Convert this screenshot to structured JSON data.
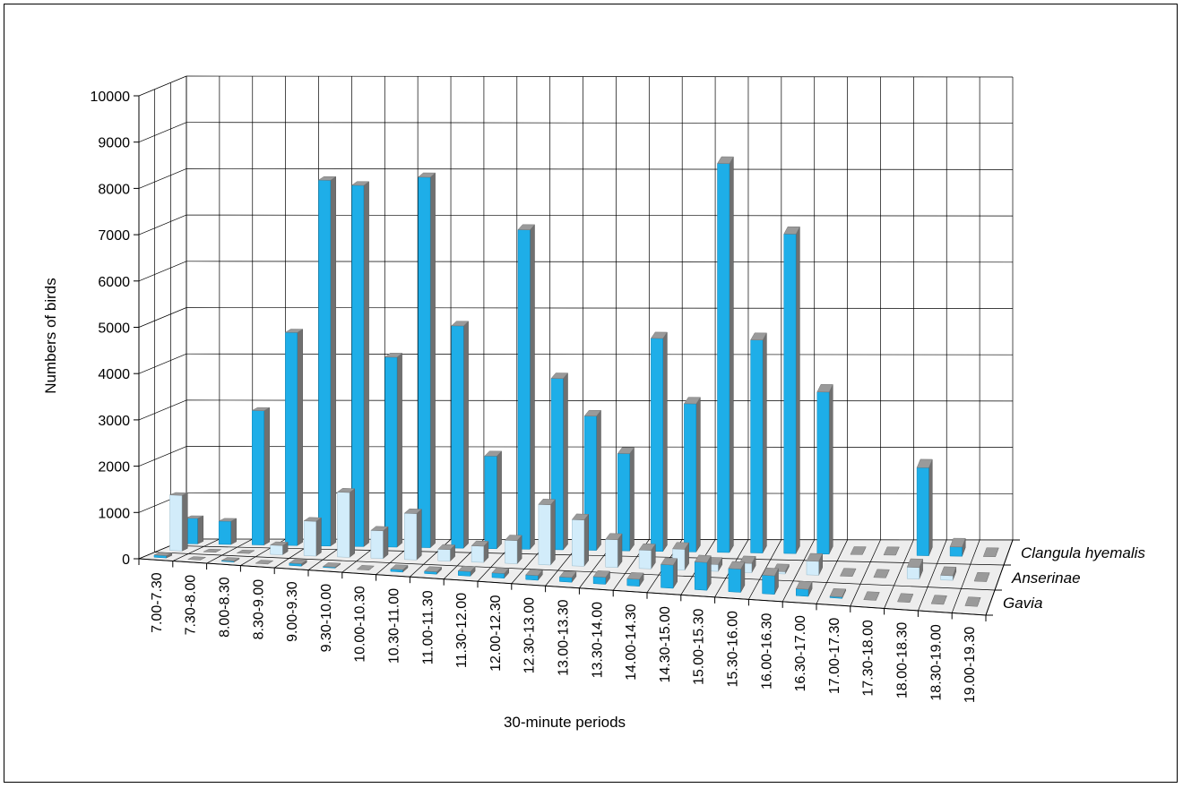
{
  "chart_data": {
    "type": "bar",
    "style": "3d-grouped",
    "ylabel": "Numbers of birds",
    "xlabel": "30-minute periods",
    "ylim": [
      0,
      10000
    ],
    "yticks": [
      0,
      1000,
      2000,
      3000,
      4000,
      5000,
      6000,
      7000,
      8000,
      9000,
      10000
    ],
    "categories": [
      "7.00-7.30",
      "7.30-8.00",
      "8.00-8.30",
      "8.30-9.00",
      "9.00-9.30",
      "9.30-10.00",
      "10.00-10.30",
      "10.30-11.00",
      "11.00-11.30",
      "11.30-12.00",
      "12.00-12.30",
      "12.30-13.00",
      "13.00-13.30",
      "13.30-14.00",
      "14.00-14.30",
      "14.30-15.00",
      "15.00-15.30",
      "15.30-16.00",
      "16.00-16.30",
      "16.30-17.00",
      "17.00-17.30",
      "17.30-18.00",
      "18.00-18.30",
      "18.30-19.00",
      "19.00-19.30"
    ],
    "series": [
      {
        "name": "Clangula hyemalis",
        "color": "#1eaee8",
        "values": [
          550,
          500,
          2900,
          4600,
          7900,
          7800,
          4100,
          8000,
          4800,
          2000,
          6900,
          3700,
          2900,
          2100,
          4600,
          3200,
          8400,
          4600,
          6900,
          3500,
          0,
          0,
          1900,
          200,
          0
        ]
      },
      {
        "name": "Anserinae",
        "color": "#d2ecfa",
        "values": [
          1200,
          0,
          0,
          200,
          750,
          1400,
          600,
          1000,
          250,
          350,
          500,
          1300,
          1000,
          600,
          400,
          450,
          150,
          200,
          50,
          300,
          0,
          0,
          250,
          100,
          0
        ]
      },
      {
        "name": "Gavia",
        "color": "#1eaee8",
        "values": [
          50,
          0,
          20,
          0,
          50,
          20,
          0,
          50,
          50,
          100,
          100,
          100,
          100,
          150,
          150,
          500,
          600,
          500,
          400,
          150,
          30,
          0,
          0,
          0,
          0
        ]
      }
    ]
  }
}
